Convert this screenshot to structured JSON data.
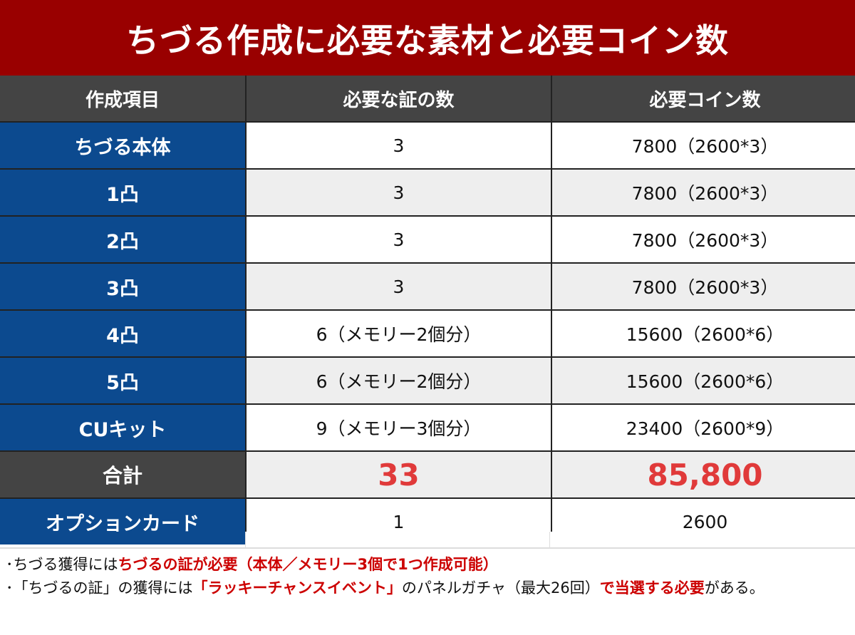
{
  "title": "ちづる作成に必要な素材と必要コイン数",
  "headers": [
    "作成項目",
    "必要な証の数",
    "必要コイン数"
  ],
  "rows": [
    {
      "label": "ちづる本体",
      "proofs": "3",
      "coins": "7800（2600*3）"
    },
    {
      "label": "1凸",
      "proofs": "3",
      "coins": "7800（2600*3）"
    },
    {
      "label": "2凸",
      "proofs": "3",
      "coins": "7800（2600*3）"
    },
    {
      "label": "3凸",
      "proofs": "3",
      "coins": "7800（2600*3）"
    },
    {
      "label": "4凸",
      "proofs": "6（メモリー2個分）",
      "coins": "15600（2600*6）"
    },
    {
      "label": "5凸",
      "proofs": "6（メモリー2個分）",
      "coins": "15600（2600*6）"
    },
    {
      "label": "CUキット",
      "proofs": "9（メモリー3個分）",
      "coins": "23400（2600*9）"
    }
  ],
  "total": {
    "label": "合計",
    "proofs": "33",
    "coins": "85,800"
  },
  "option": {
    "label": "オプションカード",
    "proofs": "1",
    "coins": "2600"
  },
  "notes": {
    "line1_a": "･ちづる獲得には",
    "line1_b": "ちづるの証が必要（本体／メモリー3個で1つ作成可能）",
    "line2_a": "･「ちづるの証」の獲得には",
    "line2_b": "「ラッキーチャンスイベント」",
    "line2_c": "のパネルガチャ（最大26回）",
    "line2_d": "で当選する必要",
    "line2_e": "がある。"
  },
  "colors": {
    "title_bg": "#990000",
    "label_bg": "#0c4a8f",
    "header_bg": "#444444",
    "total_text": "#e03a3a",
    "note_red": "#cc0000"
  }
}
